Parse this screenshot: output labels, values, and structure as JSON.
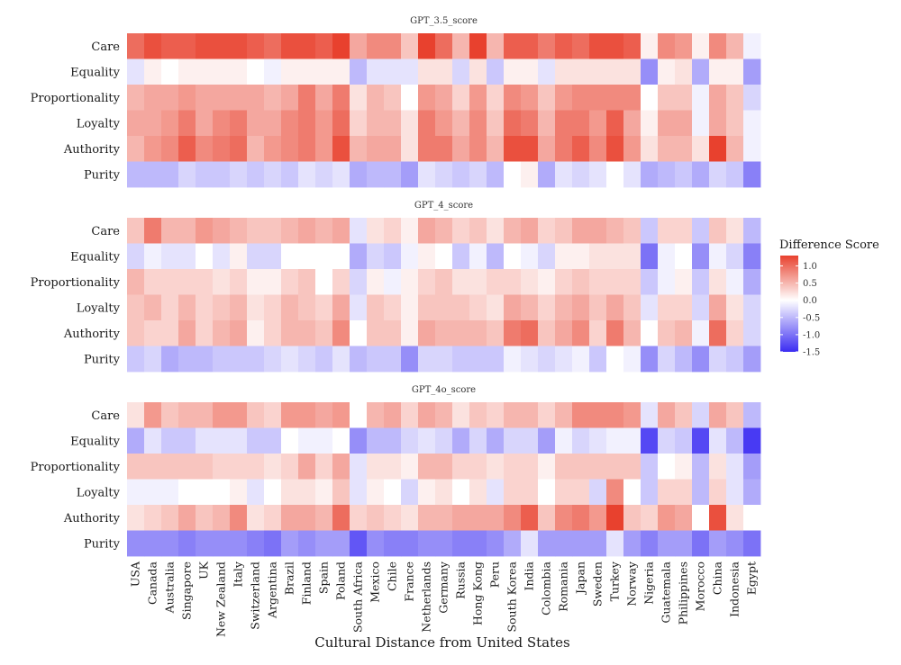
{
  "chart_data": {
    "type": "heatmap",
    "xlabel": "Cultural Distance from United States",
    "countries": [
      "USA",
      "Canada",
      "Australia",
      "Singapore",
      "UK",
      "New Zealand",
      "Italy",
      "Switzerland",
      "Argentina",
      "Brazil",
      "Finland",
      "Spain",
      "Poland",
      "South Africa",
      "Mexico",
      "Chile",
      "France",
      "Netherlands",
      "Germany",
      "Russia",
      "Hong Kong",
      "Peru",
      "South Korea",
      "India",
      "Colombia",
      "Romania",
      "Japan",
      "Sweden",
      "Turkey",
      "Norway",
      "Nigeria",
      "Guatemala",
      "Philippines",
      "Morocco",
      "China",
      "Indonesia",
      "Egypt"
    ],
    "foundations": [
      "Care",
      "Equality",
      "Proportionality",
      "Loyalty",
      "Authority",
      "Purity"
    ],
    "panels": [
      {
        "title": "GPT_3.5_score",
        "values": [
          [
            1.0,
            1.2,
            1.1,
            1.1,
            1.2,
            1.2,
            1.2,
            1.1,
            1.0,
            1.2,
            1.2,
            1.1,
            1.3,
            0.6,
            0.8,
            0.8,
            0.4,
            1.3,
            1.0,
            0.5,
            1.3,
            0.5,
            1.1,
            1.1,
            0.9,
            1.1,
            1.0,
            1.2,
            1.2,
            1.1,
            0.1,
            0.8,
            0.7,
            0.1,
            0.8,
            0.5,
            -0.1
          ],
          [
            -0.2,
            0.1,
            0.0,
            0.1,
            0.1,
            0.1,
            0.1,
            0.0,
            -0.1,
            0.1,
            0.1,
            0.1,
            0.1,
            -0.5,
            -0.2,
            -0.2,
            -0.2,
            0.2,
            0.2,
            -0.3,
            0.2,
            -0.4,
            0.1,
            0.1,
            -0.2,
            0.2,
            0.2,
            0.2,
            0.2,
            0.2,
            -0.8,
            0.1,
            0.2,
            -0.6,
            0.1,
            0.1,
            -0.7
          ],
          [
            0.5,
            0.6,
            0.6,
            0.7,
            0.6,
            0.6,
            0.6,
            0.6,
            0.5,
            0.6,
            0.9,
            0.6,
            0.9,
            0.2,
            0.5,
            0.4,
            0.0,
            0.7,
            0.6,
            0.3,
            0.7,
            0.3,
            0.8,
            0.7,
            0.4,
            0.7,
            0.8,
            0.8,
            0.8,
            0.8,
            0.0,
            0.4,
            0.4,
            -0.1,
            0.6,
            0.4,
            -0.3
          ],
          [
            0.6,
            0.6,
            0.7,
            0.9,
            0.6,
            0.8,
            0.9,
            0.6,
            0.6,
            0.8,
            0.9,
            0.7,
            1.0,
            0.3,
            0.5,
            0.5,
            0.2,
            0.9,
            0.7,
            0.5,
            0.8,
            0.4,
            1.0,
            0.9,
            0.5,
            0.9,
            0.9,
            0.7,
            1.1,
            0.6,
            0.1,
            0.6,
            0.6,
            -0.1,
            0.6,
            0.4,
            -0.1
          ],
          [
            0.5,
            0.7,
            0.8,
            1.1,
            0.8,
            0.9,
            1.0,
            0.5,
            0.7,
            0.8,
            0.9,
            0.7,
            1.2,
            0.5,
            0.6,
            0.6,
            0.2,
            0.9,
            0.9,
            0.6,
            0.8,
            0.5,
            1.2,
            1.2,
            0.6,
            0.9,
            1.1,
            0.8,
            1.2,
            0.7,
            0.2,
            0.5,
            0.5,
            0.2,
            1.3,
            0.5,
            -0.1
          ],
          [
            -0.5,
            -0.5,
            -0.5,
            -0.3,
            -0.4,
            -0.4,
            -0.3,
            -0.4,
            -0.3,
            -0.4,
            -0.2,
            -0.3,
            -0.2,
            -0.6,
            -0.5,
            -0.5,
            -0.7,
            -0.2,
            -0.3,
            -0.4,
            -0.3,
            -0.5,
            0.0,
            0.1,
            -0.6,
            -0.2,
            -0.3,
            -0.2,
            0.0,
            -0.2,
            -0.6,
            -0.5,
            -0.4,
            -0.6,
            -0.3,
            -0.4,
            -0.9
          ]
        ]
      },
      {
        "title": "GPT_4_score",
        "values": [
          [
            0.4,
            0.9,
            0.5,
            0.5,
            0.7,
            0.6,
            0.5,
            0.4,
            0.4,
            0.5,
            0.6,
            0.5,
            0.6,
            -0.2,
            0.2,
            0.3,
            0.1,
            0.6,
            0.5,
            0.3,
            0.4,
            0.2,
            0.5,
            0.6,
            0.3,
            0.4,
            0.6,
            0.6,
            0.5,
            0.4,
            -0.4,
            0.3,
            0.3,
            -0.4,
            0.4,
            0.2,
            -0.5
          ],
          [
            -0.3,
            -0.1,
            -0.2,
            -0.2,
            0.0,
            -0.2,
            0.1,
            -0.3,
            -0.3,
            0.0,
            0.0,
            0.0,
            0.0,
            -0.6,
            -0.3,
            -0.4,
            -0.1,
            0.1,
            0.0,
            -0.4,
            -0.1,
            -0.5,
            0.0,
            -0.1,
            -0.3,
            0.1,
            0.1,
            0.2,
            0.2,
            0.2,
            -1.0,
            -0.1,
            0.0,
            -0.8,
            -0.1,
            -0.3,
            -0.9
          ],
          [
            0.5,
            0.3,
            0.3,
            0.3,
            0.3,
            0.2,
            0.3,
            0.1,
            0.1,
            0.3,
            0.4,
            0.0,
            0.3,
            -0.3,
            0.1,
            -0.1,
            0.1,
            0.3,
            0.4,
            0.2,
            0.2,
            0.3,
            0.3,
            0.2,
            0.1,
            0.3,
            0.4,
            0.3,
            0.3,
            0.3,
            -0.4,
            -0.1,
            0.1,
            -0.4,
            0.2,
            -0.1,
            -0.6
          ],
          [
            0.4,
            0.5,
            0.3,
            0.5,
            0.3,
            0.4,
            0.5,
            0.2,
            0.3,
            0.5,
            0.4,
            0.3,
            0.6,
            -0.2,
            0.4,
            0.3,
            0.1,
            0.4,
            0.4,
            0.4,
            0.3,
            0.2,
            0.6,
            0.5,
            0.3,
            0.5,
            0.6,
            0.4,
            0.6,
            0.4,
            -0.2,
            0.3,
            0.3,
            -0.3,
            0.6,
            0.2,
            -0.3
          ],
          [
            0.4,
            0.3,
            0.3,
            0.6,
            0.3,
            0.5,
            0.6,
            0.1,
            0.3,
            0.5,
            0.5,
            0.4,
            0.8,
            0.0,
            0.4,
            0.4,
            0.1,
            0.6,
            0.5,
            0.5,
            0.5,
            0.4,
            0.9,
            1.0,
            0.4,
            0.6,
            0.8,
            0.3,
            0.9,
            0.5,
            0.0,
            0.4,
            0.5,
            -0.1,
            1.0,
            0.3,
            -0.3
          ],
          [
            -0.4,
            -0.3,
            -0.6,
            -0.5,
            -0.5,
            -0.4,
            -0.4,
            -0.4,
            -0.3,
            -0.2,
            -0.3,
            -0.4,
            -0.2,
            -0.5,
            -0.4,
            -0.4,
            -0.8,
            -0.3,
            -0.3,
            -0.4,
            -0.4,
            -0.4,
            -0.1,
            -0.2,
            -0.3,
            -0.2,
            -0.1,
            -0.4,
            0.0,
            -0.1,
            -0.8,
            -0.3,
            -0.5,
            -0.8,
            -0.3,
            -0.4,
            -0.7
          ]
        ]
      },
      {
        "title": "GPT_4o_score",
        "values": [
          [
            0.2,
            0.7,
            0.4,
            0.5,
            0.5,
            0.7,
            0.7,
            0.4,
            0.3,
            0.7,
            0.7,
            0.6,
            0.7,
            0.0,
            0.5,
            0.6,
            0.3,
            0.6,
            0.5,
            0.2,
            0.4,
            0.3,
            0.5,
            0.5,
            0.3,
            0.5,
            0.8,
            0.8,
            0.8,
            0.7,
            -0.2,
            0.6,
            0.4,
            -0.3,
            0.6,
            0.4,
            -0.5
          ],
          [
            -0.6,
            -0.2,
            -0.4,
            -0.4,
            -0.2,
            -0.2,
            -0.2,
            -0.4,
            -0.4,
            0.0,
            -0.1,
            -0.1,
            0.0,
            -0.8,
            -0.5,
            -0.5,
            -0.3,
            -0.2,
            -0.3,
            -0.6,
            -0.3,
            -0.6,
            -0.3,
            -0.3,
            -0.7,
            -0.1,
            -0.3,
            -0.2,
            -0.1,
            -0.1,
            -1.3,
            -0.3,
            -0.4,
            -1.3,
            -0.2,
            -0.5,
            -1.4
          ],
          [
            0.4,
            0.4,
            0.4,
            0.4,
            0.4,
            0.3,
            0.3,
            0.3,
            0.2,
            0.3,
            0.6,
            0.3,
            0.6,
            -0.2,
            0.2,
            0.2,
            0.1,
            0.5,
            0.5,
            0.3,
            0.3,
            0.2,
            0.3,
            0.3,
            0.1,
            0.4,
            0.4,
            0.4,
            0.4,
            0.4,
            -0.4,
            0.0,
            0.1,
            -0.5,
            0.2,
            -0.2,
            -0.7
          ],
          [
            -0.1,
            -0.1,
            -0.1,
            0.0,
            0.0,
            0.0,
            0.1,
            -0.2,
            0.0,
            0.2,
            0.2,
            0.1,
            0.4,
            -0.2,
            0.1,
            0.0,
            -0.3,
            0.1,
            0.2,
            0.0,
            0.2,
            -0.2,
            0.3,
            0.3,
            0.0,
            0.3,
            0.3,
            -0.3,
            0.8,
            0.0,
            -0.4,
            0.3,
            0.3,
            -0.5,
            0.3,
            -0.2,
            -0.6
          ],
          [
            0.2,
            0.3,
            0.4,
            0.6,
            0.4,
            0.5,
            0.8,
            0.2,
            0.3,
            0.6,
            0.6,
            0.5,
            1.0,
            0.3,
            0.4,
            0.3,
            0.2,
            0.5,
            0.5,
            0.6,
            0.6,
            0.6,
            0.8,
            1.1,
            0.4,
            0.8,
            0.9,
            0.7,
            1.3,
            0.4,
            0.3,
            0.7,
            0.6,
            0.0,
            1.2,
            0.2,
            0.0
          ],
          [
            -0.8,
            -0.8,
            -0.8,
            -0.9,
            -0.8,
            -0.8,
            -0.8,
            -0.9,
            -1.0,
            -0.7,
            -0.8,
            -0.7,
            -0.7,
            -1.2,
            -0.8,
            -0.9,
            -0.9,
            -0.8,
            -0.8,
            -0.9,
            -0.9,
            -0.8,
            -0.6,
            -0.2,
            -0.7,
            -0.7,
            -0.7,
            -0.7,
            -0.2,
            -0.7,
            -0.9,
            -0.7,
            -0.7,
            -1.0,
            -0.7,
            -0.8,
            -1.0
          ]
        ]
      }
    ],
    "legend": {
      "title": "Difference Score",
      "ticks": [
        1.0,
        0.5,
        0.0,
        -0.5,
        -1.0,
        -1.5
      ],
      "tick_labels": [
        "1.0",
        "0.5",
        "0.0",
        "-0.5",
        "-1.0",
        "-1.5"
      ],
      "range": [
        -1.5,
        1.3
      ],
      "low_color": "#3b2cf2",
      "mid_color": "#ffffff",
      "high_color": "#e8412e",
      "placement": "right"
    },
    "grid": false
  }
}
